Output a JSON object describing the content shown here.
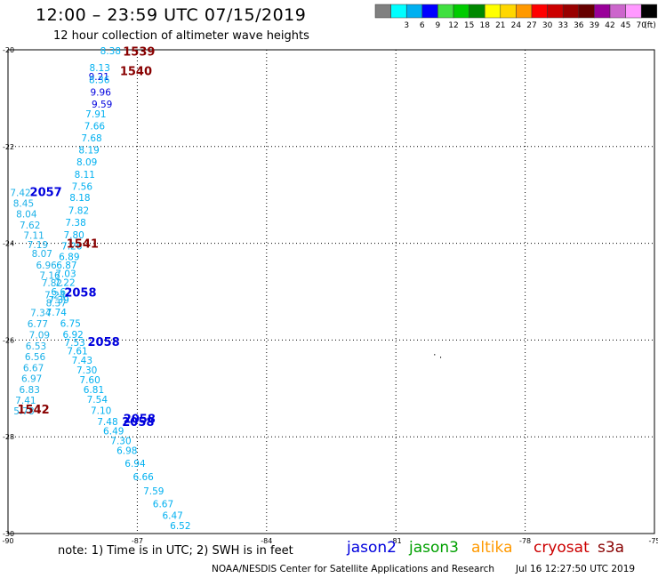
{
  "header": {
    "title": "12:00 – 23:59 UTC 07/15/2019",
    "subtitle": "12 hour collection of altimeter wave heights"
  },
  "footer": {
    "note": "note:  1) Time is in UTC;  2) SWH is in feet",
    "credit": "NOAA/NESDIS Center for Satellite Applications and Research",
    "timestamp": "Jul 16 12:27:50 UTC 2019",
    "satellites": [
      {
        "name": "jason2",
        "color": "#0000dd"
      },
      {
        "name": "jason3",
        "color": "#00a000"
      },
      {
        "name": "altika",
        "color": "#ff9900"
      },
      {
        "name": "cryosat",
        "color": "#cc0000"
      },
      {
        "name": "s3a",
        "color": "#880000"
      }
    ]
  },
  "chart_data": {
    "type": "scatter",
    "title": "12:00 – 23:59 UTC 07/15/2019",
    "subtitle": "12 hour collection of altimeter wave heights",
    "xlim": [
      -90,
      -75
    ],
    "ylim": [
      -30,
      -20
    ],
    "x_ticks": [
      -90,
      -87,
      -84,
      -81,
      -78,
      -75
    ],
    "y_ticks": [
      -20,
      -22,
      -24,
      -26,
      -28,
      -30
    ],
    "grid": true,
    "legend": {
      "placement": "top-right",
      "unit": "(ft)",
      "bins": [
        {
          "label": "",
          "color": "#808080"
        },
        {
          "label": "3",
          "color": "#00ffff"
        },
        {
          "label": "6",
          "color": "#00b0f0"
        },
        {
          "label": "9",
          "color": "#0000ff"
        },
        {
          "label": "12",
          "color": "#40e040"
        },
        {
          "label": "15",
          "color": "#00cc00"
        },
        {
          "label": "18",
          "color": "#008800"
        },
        {
          "label": "21",
          "color": "#ffff00"
        },
        {
          "label": "24",
          "color": "#ffd700"
        },
        {
          "label": "27",
          "color": "#ff9900"
        },
        {
          "label": "30",
          "color": "#ff0000"
        },
        {
          "label": "33",
          "color": "#cc0000"
        },
        {
          "label": "36",
          "color": "#990000"
        },
        {
          "label": "39",
          "color": "#660000"
        },
        {
          "label": "42",
          "color": "#990099"
        },
        {
          "label": "45",
          "color": "#cc66cc"
        },
        {
          "label": "70",
          "color": "#ff99ff"
        },
        {
          "label": "",
          "color": "#000000"
        }
      ]
    },
    "series": [
      {
        "name": "jason2",
        "color": "#0000dd",
        "points": [
          {
            "x": -87.89,
            "y": -20.55,
            "v": "9.21"
          },
          {
            "x": -87.85,
            "y": -20.87,
            "v": "9.96"
          },
          {
            "x": -87.82,
            "y": -21.12,
            "v": "9.59"
          }
        ]
      },
      {
        "name": "pass-1",
        "color": "#00b0f0",
        "points": [
          {
            "x": -87.62,
            "y": -20.02,
            "v": "8.38"
          },
          {
            "x": -87.87,
            "y": -20.37,
            "v": "8.13"
          },
          {
            "x": -87.88,
            "y": -20.62,
            "v": "8.36"
          },
          {
            "x": -87.96,
            "y": -21.32,
            "v": "7.91"
          },
          {
            "x": -87.99,
            "y": -21.57,
            "v": "7.66"
          },
          {
            "x": -88.06,
            "y": -21.82,
            "v": "7.68"
          },
          {
            "x": -88.12,
            "y": -22.07,
            "v": "8.19"
          },
          {
            "x": -88.17,
            "y": -22.32,
            "v": "8.09"
          },
          {
            "x": -88.22,
            "y": -22.57,
            "v": "8.11"
          },
          {
            "x": -88.28,
            "y": -22.82,
            "v": "7.56"
          },
          {
            "x": -88.33,
            "y": -23.05,
            "v": "8.18"
          },
          {
            "x": -88.36,
            "y": -23.32,
            "v": "7.82"
          },
          {
            "x": -88.43,
            "y": -23.57,
            "v": "7.38"
          },
          {
            "x": -88.47,
            "y": -23.82,
            "v": "7.80"
          },
          {
            "x": -88.52,
            "y": -24.05,
            "v": "7.26"
          },
          {
            "x": -88.58,
            "y": -24.27,
            "v": "6.89"
          },
          {
            "x": -88.64,
            "y": -24.45,
            "v": "6.87"
          },
          {
            "x": -88.66,
            "y": -24.62,
            "v": "7.03"
          },
          {
            "x": -88.68,
            "y": -24.81,
            "v": "7.22"
          },
          {
            "x": -88.76,
            "y": -25.0,
            "v": "6.67"
          },
          {
            "x": -88.82,
            "y": -25.17,
            "v": "7.39"
          },
          {
            "x": -88.88,
            "y": -25.42,
            "v": "7.74"
          },
          {
            "x": -88.55,
            "y": -25.65,
            "v": "6.75"
          },
          {
            "x": -88.49,
            "y": -25.88,
            "v": "6.92"
          },
          {
            "x": -88.45,
            "y": -26.05,
            "v": "7.53"
          },
          {
            "x": -88.39,
            "y": -26.22,
            "v": "7.61"
          },
          {
            "x": -88.28,
            "y": -26.42,
            "v": "7.43"
          },
          {
            "x": -88.17,
            "y": -26.62,
            "v": "7.30"
          },
          {
            "x": -88.1,
            "y": -26.82,
            "v": "7.60"
          },
          {
            "x": -88.01,
            "y": -27.02,
            "v": "6.81"
          },
          {
            "x": -87.93,
            "y": -27.22,
            "v": "7.54"
          },
          {
            "x": -87.84,
            "y": -27.45,
            "v": "7.10"
          },
          {
            "x": -87.69,
            "y": -27.68,
            "v": "7.48"
          },
          {
            "x": -87.55,
            "y": -27.88,
            "v": "6.49"
          },
          {
            "x": -87.38,
            "y": -28.08,
            "v": "7.30"
          },
          {
            "x": -87.24,
            "y": -28.28,
            "v": "6.98"
          },
          {
            "x": -87.05,
            "y": -28.55,
            "v": "6.94"
          },
          {
            "x": -86.86,
            "y": -28.82,
            "v": "6.66"
          },
          {
            "x": -86.62,
            "y": -29.12,
            "v": "7.59"
          },
          {
            "x": -86.4,
            "y": -29.38,
            "v": "6.67"
          },
          {
            "x": -86.18,
            "y": -29.62,
            "v": "6.47"
          },
          {
            "x": -86.0,
            "y": -29.83,
            "v": "6.52"
          }
        ]
      },
      {
        "name": "pass-2",
        "color": "#1ab0e8",
        "points": [
          {
            "x": -89.71,
            "y": -22.95,
            "v": "7.42"
          },
          {
            "x": -89.64,
            "y": -23.17,
            "v": "8.45"
          },
          {
            "x": -89.57,
            "y": -23.39,
            "v": "8.04"
          },
          {
            "x": -89.49,
            "y": -23.62,
            "v": "7.62"
          },
          {
            "x": -89.4,
            "y": -23.83,
            "v": "7.11"
          },
          {
            "x": -89.31,
            "y": -24.03,
            "v": "7.19"
          },
          {
            "x": -89.21,
            "y": -24.21,
            "v": "8.07"
          },
          {
            "x": -89.11,
            "y": -24.45,
            "v": "6.96"
          },
          {
            "x": -89.03,
            "y": -24.66,
            "v": "7.16"
          },
          {
            "x": -88.98,
            "y": -24.82,
            "v": "7.82"
          },
          {
            "x": -88.91,
            "y": -25.06,
            "v": "7.24"
          },
          {
            "x": -88.88,
            "y": -25.23,
            "v": "8.37"
          },
          {
            "x": -89.24,
            "y": -25.43,
            "v": "7.34"
          },
          {
            "x": -89.31,
            "y": -25.66,
            "v": "6.77"
          },
          {
            "x": -89.27,
            "y": -25.89,
            "v": "7.09"
          },
          {
            "x": -89.35,
            "y": -26.12,
            "v": "6.53"
          },
          {
            "x": -89.37,
            "y": -26.34,
            "v": "6.56"
          },
          {
            "x": -89.41,
            "y": -26.57,
            "v": "6.67"
          },
          {
            "x": -89.45,
            "y": -26.79,
            "v": "6.97"
          },
          {
            "x": -89.5,
            "y": -27.02,
            "v": "6.83"
          },
          {
            "x": -89.59,
            "y": -27.24,
            "v": "7.41"
          },
          {
            "x": -89.63,
            "y": -27.46,
            "v": "5.78"
          }
        ]
      },
      {
        "name": "jason2-labels",
        "color": "#0000dd",
        "points": [
          {
            "x": -89.12,
            "y": -22.93,
            "v": "2057"
          },
          {
            "x": -88.32,
            "y": -25.01,
            "v": "2058"
          },
          {
            "x": -87.78,
            "y": -26.03,
            "v": "2058"
          },
          {
            "x": -86.95,
            "y": -27.62,
            "v": "2058"
          },
          {
            "x": -86.98,
            "y": -27.68,
            "v": "2058"
          }
        ]
      },
      {
        "name": "s3a-labels",
        "color": "#880000",
        "points": [
          {
            "x": -86.96,
            "y": -20.03,
            "v": "1539"
          },
          {
            "x": -87.03,
            "y": -20.43,
            "v": "1540"
          },
          {
            "x": -88.27,
            "y": -24.0,
            "v": "1541"
          },
          {
            "x": -89.41,
            "y": -27.43,
            "v": "1542"
          }
        ]
      },
      {
        "name": "dots",
        "color": "#000000",
        "points": [
          {
            "x": -80.1,
            "y": -26.3,
            "v": "·"
          },
          {
            "x": -79.96,
            "y": -26.35,
            "v": "·"
          }
        ]
      }
    ]
  }
}
